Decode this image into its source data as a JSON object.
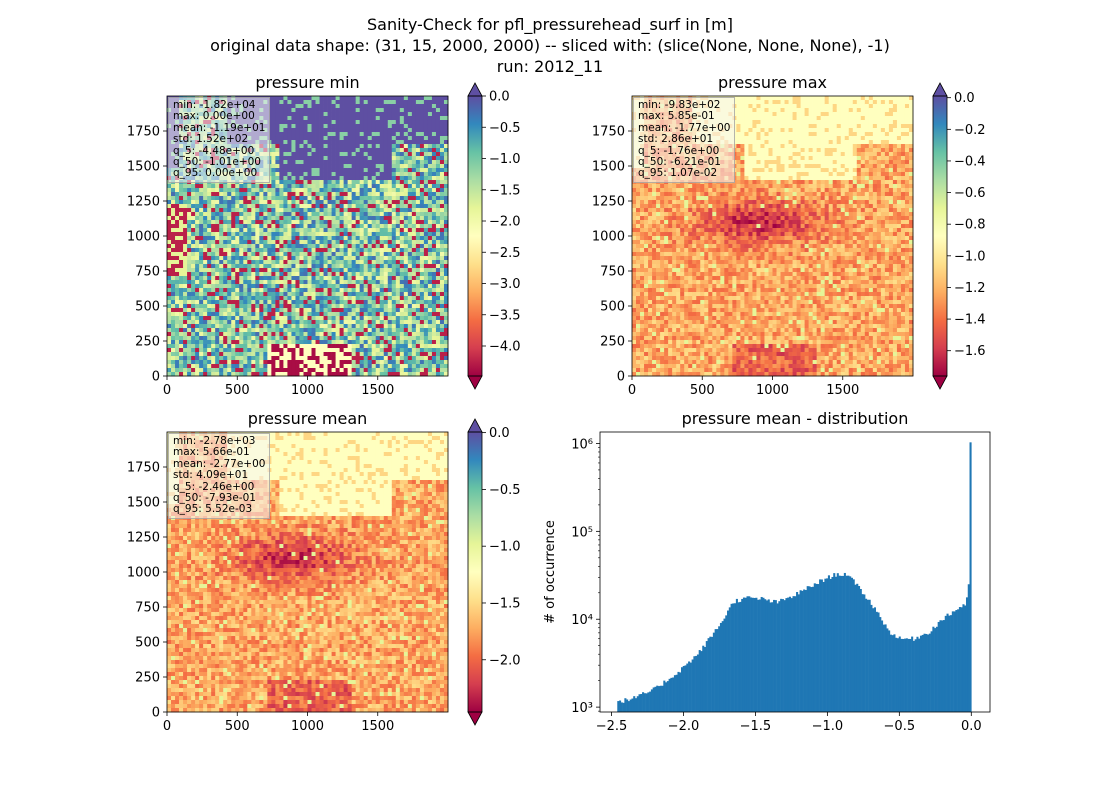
{
  "figure": {
    "title_lines": [
      "Sanity-Check for pfl_pressurehead_surf in [m]",
      "original data shape: (31, 15, 2000, 2000) -- sliced with: (slice(None, None, None), -1)",
      "run: 2012_11"
    ]
  },
  "chart_data": [
    {
      "type": "heatmap",
      "title": "pressure min",
      "colormap": "Spectral",
      "xlim": [
        0,
        2000
      ],
      "ylim": [
        0,
        2000
      ],
      "x_ticks": [
        "0",
        "500",
        "1000",
        "1500"
      ],
      "y_ticks": [
        "0",
        "250",
        "500",
        "750",
        "1000",
        "1250",
        "1500",
        "1750"
      ],
      "colorbar": {
        "vmin": -4.48,
        "vmax": 0.0,
        "ticks": [
          0.0,
          -0.5,
          -1.0,
          -1.5,
          -2.0,
          -2.5,
          -3.0,
          -3.5,
          -4.0
        ],
        "tick_labels": [
          "0.0",
          "−0.5",
          "−1.0",
          "−1.5",
          "−2.0",
          "−2.5",
          "−3.0",
          "−3.5",
          "−4.0"
        ],
        "extend": "both"
      },
      "stats": [
        "min: -1.82e+04",
        "max: 0.00e+00",
        "mean: -1.19e+01",
        "std: 1.52e+02",
        "q_5: -4.48e+00",
        "q_50: -1.01e+00",
        "q_95: 0.00e+00"
      ]
    },
    {
      "type": "heatmap",
      "title": "pressure max",
      "colormap": "Spectral",
      "xlim": [
        0,
        2000
      ],
      "ylim": [
        0,
        2000
      ],
      "x_ticks": [
        "0",
        "500",
        "1000",
        "1500"
      ],
      "y_ticks": [
        "0",
        "250",
        "500",
        "750",
        "1000",
        "1250",
        "1500",
        "1750"
      ],
      "colorbar": {
        "vmin": -1.76,
        "vmax": 0.0107,
        "ticks": [
          0.0,
          -0.2,
          -0.4,
          -0.6,
          -0.8,
          -1.0,
          -1.2,
          -1.4,
          -1.6
        ],
        "tick_labels": [
          "0.0",
          "−0.2",
          "−0.4",
          "−0.6",
          "−0.8",
          "−1.0",
          "−1.2",
          "−1.4",
          "−1.6"
        ],
        "extend": "both"
      },
      "stats": [
        "min: -9.83e+02",
        "max: 5.85e-01",
        "mean: -1.77e+00",
        "std: 2.86e+01",
        "q_5: -1.76e+00",
        "q_50: -6.21e-01",
        "q_95: 1.07e-02"
      ]
    },
    {
      "type": "heatmap",
      "title": "pressure mean",
      "colormap": "Spectral",
      "xlim": [
        0,
        2000
      ],
      "ylim": [
        0,
        2000
      ],
      "x_ticks": [
        "0",
        "500",
        "1000",
        "1500"
      ],
      "y_ticks": [
        "0",
        "250",
        "500",
        "750",
        "1000",
        "1250",
        "1500",
        "1750"
      ],
      "colorbar": {
        "vmin": -2.46,
        "vmax": 0.00552,
        "ticks": [
          0.0,
          -0.5,
          -1.0,
          -1.5,
          -2.0
        ],
        "tick_labels": [
          "0.0",
          "−0.5",
          "−1.0",
          "−1.5",
          "−2.0"
        ],
        "extend": "both"
      },
      "stats": [
        "min: -2.78e+03",
        "max: 5.66e-01",
        "mean: -2.77e+00",
        "std: 4.09e+01",
        "q_5: -2.46e+00",
        "q_50: -7.93e-01",
        "q_95: 5.52e-03"
      ]
    },
    {
      "type": "bar",
      "title": "pressure mean - distribution",
      "ylabel": "# of occurrence",
      "yscale": "log",
      "color": "#1f77b4",
      "xlim": [
        -2.58,
        0.13
      ],
      "ylim": [
        880,
        1350000
      ],
      "x_ticks": [
        -2.5,
        -2.0,
        -1.5,
        -1.0,
        -0.5,
        0.0
      ],
      "x_tick_labels": [
        "−2.5",
        "−2.0",
        "−1.5",
        "−1.0",
        "−0.5",
        "0.0"
      ],
      "y_ticks": [
        1000,
        10000,
        100000,
        1000000
      ],
      "y_tick_labels": [
        "10³",
        "10⁴",
        "10⁵",
        "10⁶"
      ],
      "bin_range": [
        -2.46,
        0.0
      ],
      "profile": [
        [
          -2.46,
          1150
        ],
        [
          -2.35,
          1250
        ],
        [
          -2.2,
          1600
        ],
        [
          -2.05,
          2400
        ],
        [
          -1.9,
          4000
        ],
        [
          -1.75,
          8500
        ],
        [
          -1.65,
          16000
        ],
        [
          -1.55,
          17500
        ],
        [
          -1.45,
          17000
        ],
        [
          -1.35,
          15500
        ],
        [
          -1.25,
          18000
        ],
        [
          -1.15,
          22000
        ],
        [
          -1.05,
          27000
        ],
        [
          -0.95,
          32000
        ],
        [
          -0.87,
          33000
        ],
        [
          -0.8,
          25000
        ],
        [
          -0.72,
          17000
        ],
        [
          -0.65,
          12000
        ],
        [
          -0.58,
          7500
        ],
        [
          -0.5,
          6000
        ],
        [
          -0.4,
          6000
        ],
        [
          -0.3,
          7000
        ],
        [
          -0.2,
          10000
        ],
        [
          -0.1,
          13000
        ],
        [
          -0.04,
          15000
        ],
        [
          -0.01,
          25000
        ],
        [
          0.0,
          1000000
        ]
      ]
    }
  ]
}
